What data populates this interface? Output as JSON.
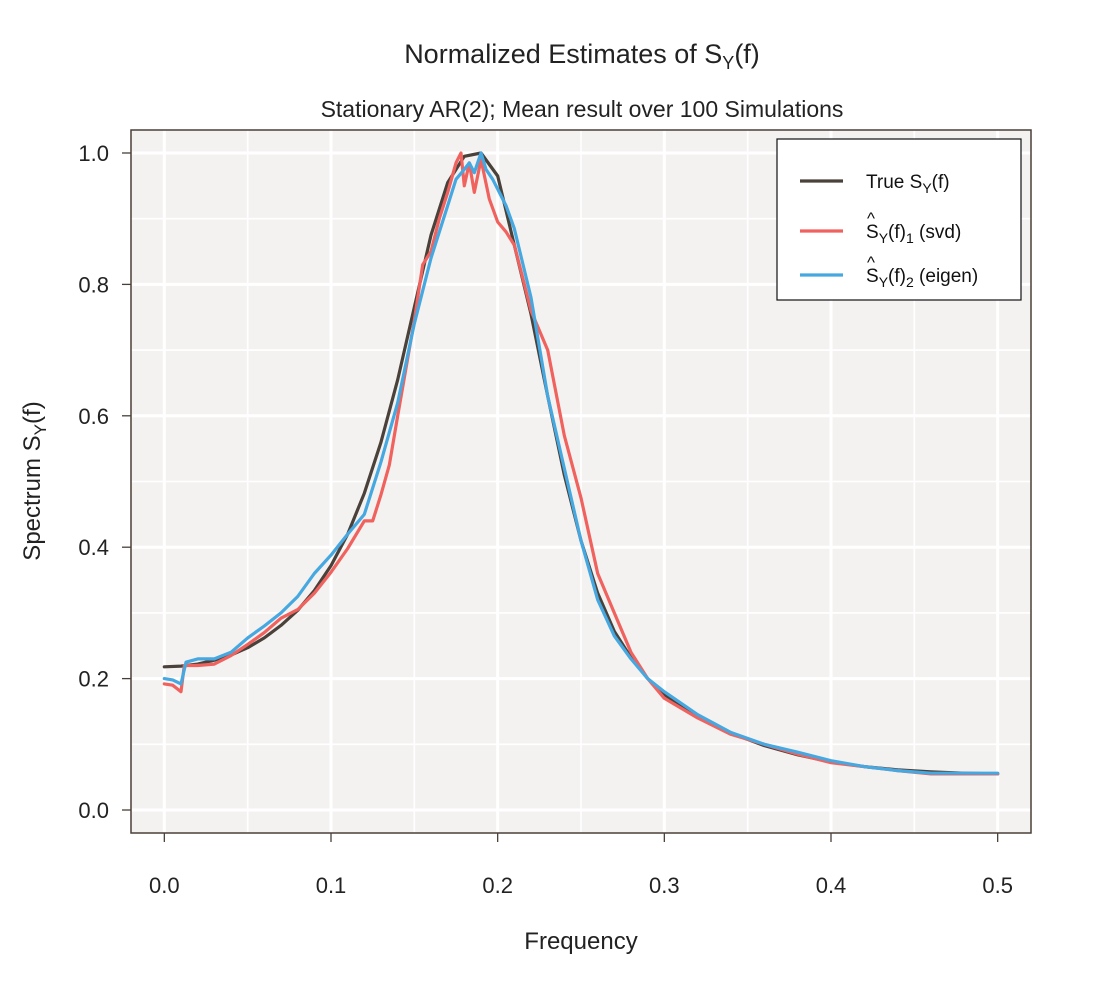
{
  "chart_data": {
    "type": "line",
    "title": {
      "base": "Normalized Estimates of S",
      "sub": "Y",
      "tail": "(f)"
    },
    "subtitle": "Stationary AR(2); Mean result over 100 Simulations",
    "xlabel": "Frequency",
    "ylabel": {
      "base": "Spectrum S",
      "sub": "Y",
      "tail": "(f)"
    },
    "xlim": [
      -0.02,
      0.52
    ],
    "ylim": [
      -0.035,
      1.035
    ],
    "xticks": [
      0.0,
      0.1,
      0.2,
      0.3,
      0.4,
      0.5
    ],
    "xtick_labels": [
      "0.0",
      "0.1",
      "0.2",
      "0.3",
      "0.4",
      "0.5"
    ],
    "yticks": [
      0.0,
      0.2,
      0.4,
      0.6,
      0.8,
      1.0
    ],
    "ytick_labels": [
      "0.0",
      "0.2",
      "0.4",
      "0.6",
      "0.8",
      "1.0"
    ],
    "grid": true,
    "grid_minor": true,
    "legend_position": "top-right",
    "colors": {
      "panel_bg": "#f4f2f1",
      "grid": "#ffffff",
      "frame": "#4a3f38"
    },
    "series": [
      {
        "name": "True S_Y(f)",
        "legend": {
          "base": "True S",
          "sub": "Y",
          "tail": "(f)",
          "hat": false
        },
        "color": "#4a413a",
        "x": [
          0.0,
          0.01,
          0.02,
          0.03,
          0.04,
          0.05,
          0.06,
          0.07,
          0.08,
          0.09,
          0.1,
          0.11,
          0.12,
          0.13,
          0.14,
          0.15,
          0.16,
          0.17,
          0.18,
          0.19,
          0.2,
          0.21,
          0.22,
          0.23,
          0.24,
          0.25,
          0.26,
          0.27,
          0.28,
          0.29,
          0.3,
          0.32,
          0.34,
          0.36,
          0.38,
          0.4,
          0.42,
          0.44,
          0.46,
          0.48,
          0.5
        ],
        "y": [
          0.218,
          0.219,
          0.222,
          0.228,
          0.236,
          0.247,
          0.262,
          0.281,
          0.304,
          0.334,
          0.372,
          0.42,
          0.482,
          0.56,
          0.655,
          0.765,
          0.875,
          0.955,
          0.995,
          1.0,
          0.965,
          0.86,
          0.755,
          0.63,
          0.51,
          0.41,
          0.33,
          0.272,
          0.232,
          0.2,
          0.176,
          0.142,
          0.117,
          0.098,
          0.084,
          0.073,
          0.066,
          0.061,
          0.058,
          0.056,
          0.055
        ]
      },
      {
        "name": "S_Y(f)_1 (svd)",
        "legend": {
          "base": "S",
          "sub": "Y",
          "tail": "(f)",
          "sub2": "1",
          "tail2": " (svd)",
          "hat": true
        },
        "color": "#f0625e",
        "x": [
          0.0,
          0.005,
          0.01,
          0.012,
          0.02,
          0.03,
          0.04,
          0.05,
          0.06,
          0.07,
          0.08,
          0.09,
          0.1,
          0.11,
          0.12,
          0.125,
          0.13,
          0.135,
          0.14,
          0.15,
          0.155,
          0.16,
          0.165,
          0.17,
          0.175,
          0.178,
          0.18,
          0.183,
          0.186,
          0.19,
          0.195,
          0.2,
          0.205,
          0.21,
          0.215,
          0.22,
          0.23,
          0.24,
          0.25,
          0.26,
          0.27,
          0.28,
          0.29,
          0.3,
          0.32,
          0.34,
          0.36,
          0.38,
          0.4,
          0.42,
          0.44,
          0.46,
          0.48,
          0.5
        ],
        "y": [
          0.192,
          0.19,
          0.18,
          0.22,
          0.22,
          0.222,
          0.235,
          0.252,
          0.27,
          0.292,
          0.305,
          0.33,
          0.362,
          0.398,
          0.44,
          0.44,
          0.48,
          0.525,
          0.6,
          0.745,
          0.83,
          0.85,
          0.9,
          0.94,
          0.985,
          1.0,
          0.95,
          0.985,
          0.94,
          0.99,
          0.93,
          0.895,
          0.88,
          0.86,
          0.81,
          0.76,
          0.7,
          0.57,
          0.475,
          0.36,
          0.3,
          0.24,
          0.2,
          0.17,
          0.14,
          0.115,
          0.1,
          0.085,
          0.072,
          0.066,
          0.06,
          0.055,
          0.055,
          0.055
        ]
      },
      {
        "name": "S_Y(f)_2 (eigen)",
        "legend": {
          "base": "S",
          "sub": "Y",
          "tail": "(f)",
          "sub2": "2",
          "tail2": " (eigen)",
          "hat": true
        },
        "color": "#46a8e0",
        "x": [
          0.0,
          0.005,
          0.01,
          0.013,
          0.02,
          0.03,
          0.04,
          0.05,
          0.06,
          0.07,
          0.08,
          0.09,
          0.1,
          0.11,
          0.12,
          0.13,
          0.14,
          0.15,
          0.16,
          0.17,
          0.175,
          0.18,
          0.183,
          0.186,
          0.19,
          0.193,
          0.197,
          0.2,
          0.205,
          0.21,
          0.22,
          0.23,
          0.24,
          0.25,
          0.26,
          0.27,
          0.28,
          0.29,
          0.3,
          0.32,
          0.34,
          0.36,
          0.38,
          0.4,
          0.42,
          0.44,
          0.46,
          0.48,
          0.5
        ],
        "y": [
          0.2,
          0.198,
          0.192,
          0.225,
          0.23,
          0.23,
          0.24,
          0.262,
          0.28,
          0.3,
          0.325,
          0.36,
          0.388,
          0.42,
          0.45,
          0.53,
          0.62,
          0.74,
          0.84,
          0.92,
          0.96,
          0.975,
          0.985,
          0.97,
          1.0,
          0.975,
          0.96,
          0.945,
          0.92,
          0.885,
          0.78,
          0.63,
          0.52,
          0.41,
          0.32,
          0.265,
          0.23,
          0.2,
          0.18,
          0.145,
          0.118,
          0.1,
          0.088,
          0.075,
          0.066,
          0.06,
          0.056,
          0.056,
          0.056
        ]
      }
    ]
  }
}
